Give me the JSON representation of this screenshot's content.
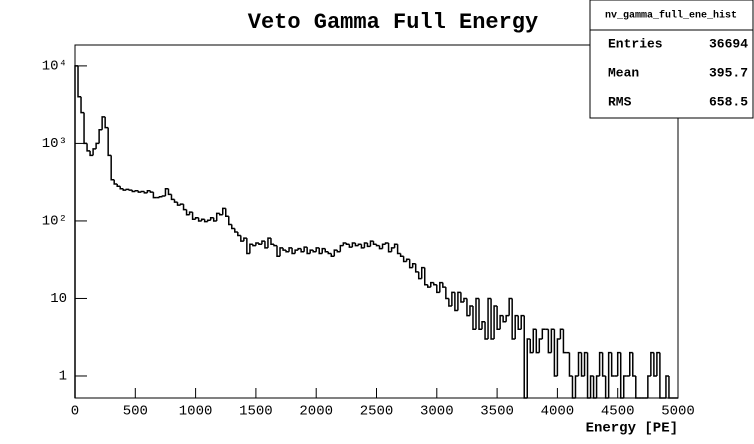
{
  "chart_data": {
    "type": "histogram",
    "title": "Veto Gamma Full Energy",
    "x_label": "Energy [PE]",
    "log_y": true,
    "color": "#000000",
    "bins": [
      0,
      25,
      50,
      75,
      100,
      125,
      150,
      175,
      200,
      225,
      250,
      275,
      300,
      325,
      350,
      375,
      400,
      425,
      450,
      475,
      500,
      525,
      550,
      575,
      600,
      625,
      650,
      675,
      700,
      725,
      750,
      775,
      800,
      825,
      850,
      875,
      900,
      925,
      950,
      975,
      1000,
      1025,
      1050,
      1075,
      1100,
      1125,
      1150,
      1175,
      1200,
      1225,
      1250,
      1275,
      1300,
      1325,
      1350,
      1375,
      1400,
      1425,
      1450,
      1475,
      1500,
      1525,
      1550,
      1575,
      1600,
      1625,
      1650,
      1675,
      1700,
      1725,
      1750,
      1775,
      1800,
      1825,
      1850,
      1875,
      1900,
      1925,
      1950,
      1975,
      2000,
      2025,
      2050,
      2075,
      2100,
      2125,
      2150,
      2175,
      2200,
      2225,
      2250,
      2275,
      2300,
      2325,
      2350,
      2375,
      2400,
      2425,
      2450,
      2475,
      2500,
      2525,
      2550,
      2575,
      2600,
      2625,
      2650,
      2675,
      2700,
      2725,
      2750,
      2775,
      2800,
      2825,
      2850,
      2875,
      2900,
      2925,
      2950,
      2975,
      3000,
      3025,
      3050,
      3075,
      3100,
      3125,
      3150,
      3175,
      3200,
      3225,
      3250,
      3275,
      3300,
      3325,
      3350,
      3375,
      3400,
      3425,
      3450,
      3475,
      3500,
      3525,
      3550,
      3575,
      3600,
      3625,
      3650,
      3675,
      3700,
      3725,
      3750,
      3775,
      3800,
      3825,
      3850,
      3875,
      3900,
      3925,
      3950,
      3975,
      4000,
      4025,
      4050,
      4075,
      4100,
      4125,
      4150,
      4175,
      4200,
      4225,
      4250,
      4275,
      4300,
      4325,
      4350,
      4375,
      4400,
      4425,
      4450,
      4475,
      4500,
      4525,
      4550,
      4575,
      4600,
      4625,
      4650,
      4675,
      4700,
      4725,
      4750,
      4775,
      4800,
      4825,
      4850,
      4875,
      4900,
      4925,
      4950,
      4975,
      5000
    ],
    "values": [
      10000,
      4000,
      2500,
      1000,
      800,
      700,
      850,
      1000,
      1500,
      2200,
      1600,
      700,
      340,
      300,
      280,
      260,
      250,
      255,
      250,
      240,
      245,
      235,
      240,
      230,
      245,
      235,
      200,
      200,
      205,
      210,
      260,
      220,
      190,
      175,
      160,
      165,
      140,
      120,
      130,
      105,
      110,
      100,
      105,
      98,
      102,
      110,
      100,
      125,
      120,
      145,
      115,
      90,
      80,
      72,
      65,
      55,
      60,
      38,
      50,
      48,
      52,
      50,
      55,
      45,
      60,
      50,
      48,
      35,
      45,
      42,
      40,
      45,
      38,
      42,
      44,
      40,
      46,
      38,
      42,
      40,
      45,
      38,
      44,
      40,
      38,
      35,
      42,
      40,
      48,
      52,
      50,
      46,
      52,
      48,
      50,
      45,
      52,
      47,
      55,
      50,
      48,
      44,
      50,
      52,
      40,
      45,
      50,
      38,
      35,
      30,
      32,
      25,
      28,
      22,
      18,
      25,
      15,
      14,
      16,
      15,
      12,
      16,
      14,
      10,
      8,
      12,
      7,
      12,
      9,
      10,
      6,
      8,
      4,
      10,
      4,
      5,
      3,
      10,
      3,
      8,
      4,
      6,
      5,
      6,
      10,
      3,
      6,
      4,
      6,
      0,
      3,
      2,
      4,
      2,
      3,
      4,
      4,
      2,
      4,
      1,
      3,
      4,
      2,
      2,
      1,
      0,
      1,
      2,
      1,
      2,
      0,
      1,
      0,
      1,
      2,
      1,
      0,
      2,
      1,
      1,
      2,
      0,
      1,
      1,
      2,
      1,
      0,
      0,
      0,
      0,
      1,
      2,
      1,
      2,
      0,
      0,
      1,
      0,
      0,
      0
    ],
    "xlim": [
      0,
      5000
    ],
    "xticks": [
      0,
      500,
      1000,
      1500,
      2000,
      2500,
      3000,
      3500,
      4000,
      4500,
      5000
    ],
    "ylim": [
      0.52,
      18600
    ],
    "yticks": [
      1,
      10,
      {
        "value": 100,
        "label": "10²"
      },
      {
        "value": 1000,
        "label": "10³"
      },
      {
        "value": 10000,
        "label": "10⁴"
      }
    ],
    "stats": {
      "name": "nv_gamma_full_ene_hist",
      "rows": [
        {
          "label": "Entries",
          "value": 36694
        },
        {
          "label": "Mean",
          "value": 395.7
        },
        {
          "label": "RMS",
          "value": 658.5
        }
      ]
    }
  }
}
